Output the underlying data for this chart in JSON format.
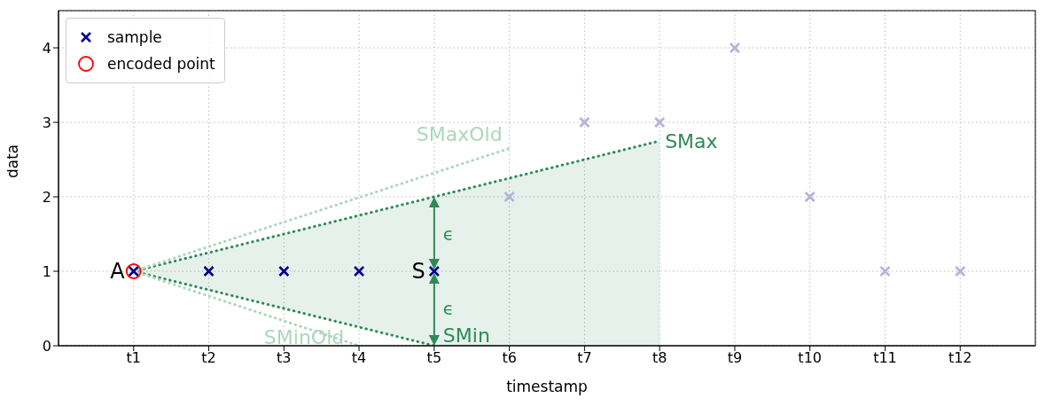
{
  "chart_data": {
    "type": "scatter",
    "xlabel": "timestamp",
    "ylabel": "data",
    "categories": [
      "t1",
      "t2",
      "t3",
      "t4",
      "t5",
      "t6",
      "t7",
      "t8",
      "t9",
      "t10",
      "t11",
      "t12"
    ],
    "ylim": [
      0,
      4.5
    ],
    "yticks": [
      0,
      1,
      2,
      3,
      4
    ],
    "grid": true,
    "legend": "top left",
    "series": [
      {
        "type": "line",
        "line_style": "dotted",
        "marker": "none",
        "color": "#2e8b57",
        "x": [
          "t1",
          "t5",
          "t8"
        ],
        "values": [
          1,
          2,
          2.75
        ],
        "lower": [
          1,
          0,
          0
        ],
        "upper": [
          1,
          2,
          2.75
        ]
      },
      {
        "type": "line",
        "line_style": "dotted",
        "marker": "none",
        "color": "#2e8b57",
        "x": [
          "t1",
          "t5"
        ],
        "values": [
          1,
          0
        ]
      },
      {
        "type": "line",
        "line_style": "dotted",
        "marker": "none",
        "color": "#acd6bd",
        "x": [
          "t1",
          "t6"
        ],
        "values": [
          1,
          2.65
        ]
      },
      {
        "type": "line",
        "line_style": "dotted",
        "marker": "none",
        "color": "#acd6bd",
        "x": [
          "t1",
          "t4"
        ],
        "values": [
          1,
          0
        ]
      },
      {
        "marker": "cross",
        "color": "#b3b3d9",
        "x": [
          "t6",
          "t7",
          "t8",
          "t9",
          "t10",
          "t11",
          "t12"
        ],
        "values": [
          2,
          3,
          3,
          4,
          2,
          1,
          1
        ]
      },
      {
        "name": "sample",
        "marker": "cross",
        "color": "#00008b",
        "x": [
          "t1",
          "t2",
          "t3",
          "t4",
          "t5"
        ],
        "values": [
          1,
          1,
          1,
          1,
          1
        ]
      },
      {
        "name": "encoded point",
        "marker": "circle",
        "color": "#ff0000",
        "x": [
          "t1"
        ],
        "values": [
          1
        ]
      }
    ],
    "annotations": [
      {
        "text": "A",
        "x": "t1",
        "y": 1
      },
      {
        "text": "S",
        "x": "t5",
        "y": 1
      },
      {
        "text": "SMax",
        "x": "t8",
        "y": 2.75
      },
      {
        "text": "SMin",
        "x": "t5",
        "y": 0
      },
      {
        "text": "SMaxOld",
        "x": "t6",
        "y": 2.65
      },
      {
        "text": "SMinOld",
        "x": "t4",
        "y": 0
      },
      "ϵ",
      "ϵ"
    ]
  }
}
